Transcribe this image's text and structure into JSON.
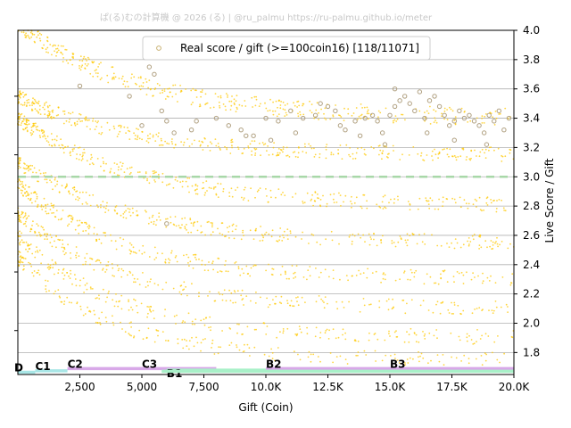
{
  "chart_data": {
    "type": "scatter",
    "title": "ぱ(る)むの計算機 @ 2026 (る) | @ru_palmu  https://ru-palmu.github.io/meter",
    "xlabel": "Gift (Coin)",
    "ylabel": "Live Score / Gift",
    "xlim": [
      0,
      20000
    ],
    "ylim": [
      1.65,
      4.0
    ],
    "x_ticks": [
      2500,
      5000,
      7500,
      10000,
      12500,
      15000,
      17500,
      20000
    ],
    "x_tick_labels": [
      "2,500",
      "5,000",
      "7,500",
      "10.0K",
      "12.5K",
      "15.0K",
      "17.5K",
      "20.0K"
    ],
    "y_ticks": [
      1.8,
      2.0,
      2.2,
      2.4,
      2.6,
      2.8,
      3.0,
      3.2,
      3.4,
      3.6,
      3.8,
      4.0
    ],
    "y_tick_labels": [
      "1.8",
      "2.0",
      "2.2",
      "2.4",
      "2.6",
      "2.8",
      "3.0",
      "3.2",
      "3.4",
      "3.6",
      "3.8",
      "4.0"
    ],
    "y_axis_side": "right",
    "grid": "horizontal",
    "legend_position": "top-center",
    "reference_line": {
      "y": 3.0,
      "style": "dashed",
      "color": "#a8d8a8"
    },
    "series": [
      {
        "name": "Real score / gift (>=100coin16) [118/11071]",
        "marker": "circle-hollow",
        "color": "#c8b070",
        "points": [
          [
            2500,
            3.62
          ],
          [
            4500,
            3.55
          ],
          [
            5000,
            3.35
          ],
          [
            5300,
            3.75
          ],
          [
            5500,
            3.7
          ],
          [
            5800,
            3.45
          ],
          [
            6000,
            3.38
          ],
          [
            6300,
            3.3
          ],
          [
            6000,
            2.68
          ],
          [
            7000,
            3.32
          ],
          [
            7200,
            3.38
          ],
          [
            8000,
            3.4
          ],
          [
            8500,
            3.35
          ],
          [
            9000,
            3.32
          ],
          [
            9500,
            3.28
          ],
          [
            10000,
            3.4
          ],
          [
            10500,
            3.38
          ],
          [
            11000,
            3.45
          ],
          [
            11500,
            3.4
          ],
          [
            12000,
            3.42
          ],
          [
            12200,
            3.5
          ],
          [
            12500,
            3.48
          ],
          [
            12800,
            3.45
          ],
          [
            13000,
            3.35
          ],
          [
            13200,
            3.32
          ],
          [
            13600,
            3.38
          ],
          [
            14000,
            3.4
          ],
          [
            14300,
            3.42
          ],
          [
            14500,
            3.38
          ],
          [
            14700,
            3.3
          ],
          [
            15000,
            3.42
          ],
          [
            15200,
            3.48
          ],
          [
            15200,
            3.6
          ],
          [
            15400,
            3.52
          ],
          [
            15600,
            3.55
          ],
          [
            15800,
            3.5
          ],
          [
            16000,
            3.45
          ],
          [
            16200,
            3.58
          ],
          [
            16400,
            3.4
          ],
          [
            16600,
            3.52
          ],
          [
            16800,
            3.55
          ],
          [
            17000,
            3.48
          ],
          [
            17200,
            3.42
          ],
          [
            17400,
            3.35
          ],
          [
            17600,
            3.38
          ],
          [
            17800,
            3.45
          ],
          [
            18000,
            3.4
          ],
          [
            18200,
            3.42
          ],
          [
            18400,
            3.38
          ],
          [
            18600,
            3.35
          ],
          [
            18800,
            3.3
          ],
          [
            19000,
            3.42
          ],
          [
            19200,
            3.38
          ],
          [
            19400,
            3.45
          ],
          [
            19600,
            3.32
          ],
          [
            19800,
            3.4
          ],
          [
            9200,
            3.28
          ],
          [
            10200,
            3.25
          ],
          [
            11200,
            3.3
          ],
          [
            13800,
            3.28
          ],
          [
            14800,
            3.22
          ],
          [
            16500,
            3.3
          ],
          [
            17600,
            3.25
          ],
          [
            18900,
            3.22
          ]
        ]
      }
    ],
    "background_series": {
      "color": "#ffc800",
      "marker": "dot",
      "bands": [
        {
          "start": [
            0,
            4.05
          ],
          "end": [
            20000,
            3.4
          ],
          "k": 3.0,
          "spread": 0.06
        },
        {
          "start": [
            0,
            3.55
          ],
          "end": [
            20000,
            3.15
          ],
          "k": 3.2,
          "spread": 0.05
        },
        {
          "start": [
            0,
            3.4
          ],
          "end": [
            20000,
            2.8
          ],
          "k": 3.0,
          "spread": 0.05
        },
        {
          "start": [
            0,
            3.1
          ],
          "end": [
            20000,
            2.55
          ],
          "k": 3.2,
          "spread": 0.05
        },
        {
          "start": [
            0,
            2.95
          ],
          "end": [
            20000,
            2.3
          ],
          "k": 3.4,
          "spread": 0.05
        },
        {
          "start": [
            0,
            2.75
          ],
          "end": [
            20000,
            2.1
          ],
          "k": 3.4,
          "spread": 0.05
        },
        {
          "start": [
            0,
            2.6
          ],
          "end": [
            20000,
            1.9
          ],
          "k": 3.6,
          "spread": 0.05
        },
        {
          "start": [
            0,
            2.45
          ],
          "end": [
            20000,
            1.75
          ],
          "k": 3.8,
          "spread": 0.05
        }
      ]
    },
    "rank_bands": [
      {
        "label": "D",
        "x0": 0,
        "x1": 700,
        "y": 1.665,
        "color": "#a8e6e6"
      },
      {
        "label": "C1",
        "x0": 700,
        "x1": 2000,
        "y": 1.675,
        "color": "#a8e6e6"
      },
      {
        "label": "C2",
        "x0": 2000,
        "x1": 5000,
        "y": 1.69,
        "color": "#d8a8e8"
      },
      {
        "label": "C3",
        "x0": 5000,
        "x1": 8000,
        "y": 1.69,
        "color": "#d8a8e8"
      },
      {
        "label": "B1",
        "x0": 6000,
        "x1": 15000,
        "y": 1.68,
        "color": "#a8f0c8"
      },
      {
        "label": "B2",
        "x0": 10000,
        "x1": 15000,
        "y": 1.69,
        "color": "#d8a8e8"
      },
      {
        "label": "B3",
        "x0": 15000,
        "x1": 20000,
        "y": 1.69,
        "color": "#d8a8e8"
      },
      {
        "label": "",
        "x0": 5800,
        "x1": 20000,
        "y": 1.672,
        "color": "#a8f0c8"
      }
    ]
  }
}
